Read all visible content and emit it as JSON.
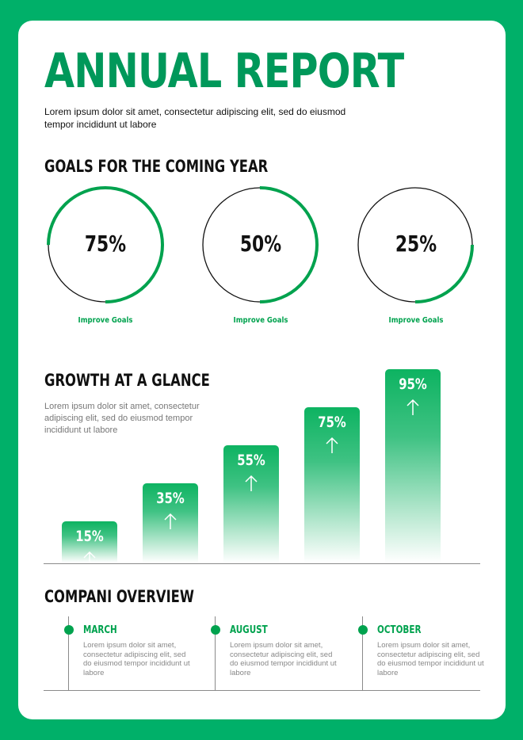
{
  "header": {
    "title": "ANNUAL REPORT",
    "intro": "Lorem ipsum dolor sit amet, consectetur adipiscing elit, sed do eiusmod tempor incididunt ut labore"
  },
  "goals": {
    "heading": "GOALS FOR THE COMING YEAR",
    "items": [
      {
        "label": "75%",
        "value": 0.75,
        "caption": "Improve Goals"
      },
      {
        "label": "50%",
        "value": 0.5,
        "caption": "Improve Goals"
      },
      {
        "label": "25%",
        "value": 0.25,
        "caption": "Improve Goals"
      }
    ]
  },
  "growth": {
    "heading": "GROWTH AT A GLANCE",
    "description": "Lorem ipsum dolor sit amet, consectetur adipiscing elit, sed do eiusmod tempor incididunt ut labore",
    "bars": [
      {
        "label": "15%",
        "value": 15
      },
      {
        "label": "35%",
        "value": 35
      },
      {
        "label": "55%",
        "value": 55
      },
      {
        "label": "75%",
        "value": 75
      },
      {
        "label": "95%",
        "value": 95
      }
    ]
  },
  "overview": {
    "heading": "COMPANI OVERVIEW",
    "items": [
      {
        "month": "MARCH",
        "text": "Lorem ipsum dolor sit amet, consectetur adipiscing elit, sed do eiusmod tempor incididunt ut labore"
      },
      {
        "month": "AUGUST",
        "text": "Lorem ipsum dolor sit amet, consectetur adipiscing elit, sed do eiusmod tempor incididunt ut labore"
      },
      {
        "month": "OCTOBER",
        "text": "Lorem ipsum dolor sit amet, consectetur adipiscing elit, sed do eiusmod tempor incididunt ut labore"
      }
    ]
  },
  "colors": {
    "background": "#00B069",
    "title": "#00985A",
    "accent": "#00A24E",
    "ring_track": "#111111"
  }
}
